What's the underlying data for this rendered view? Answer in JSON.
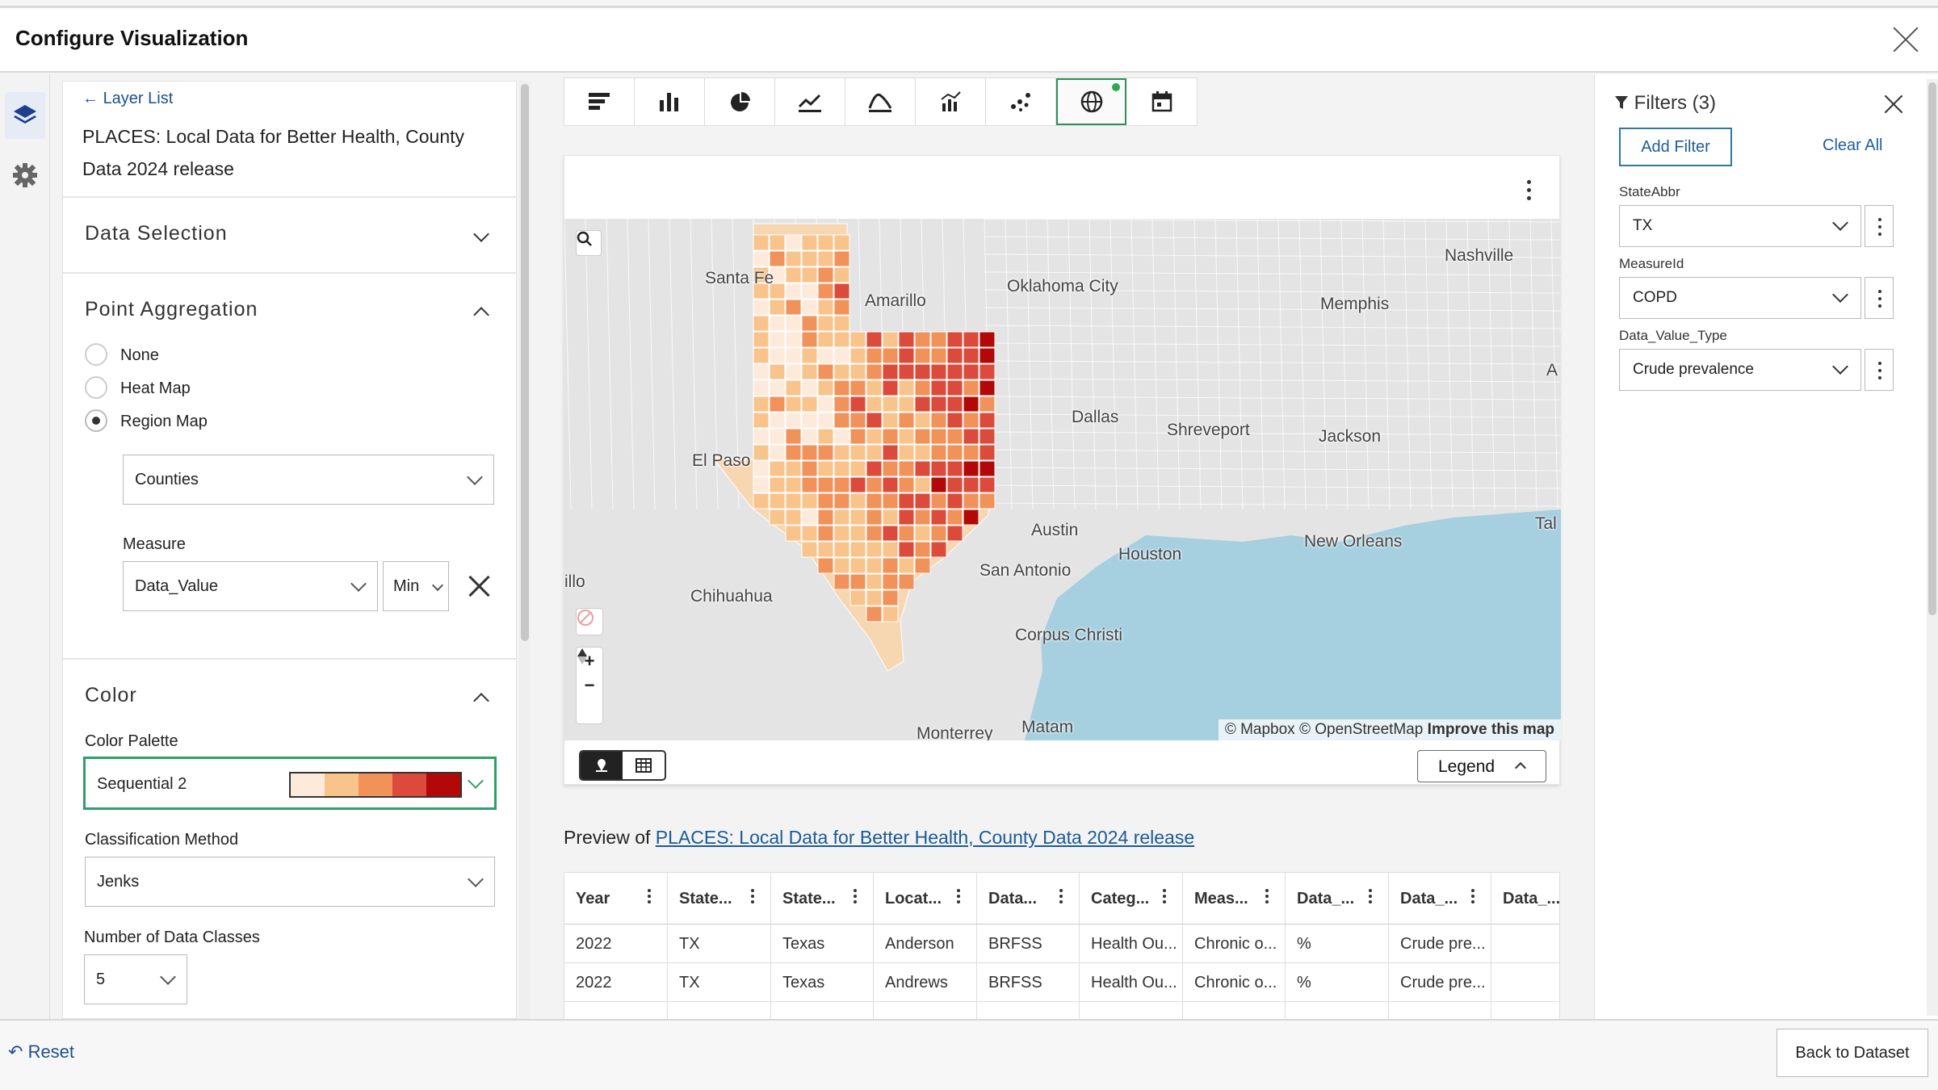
{
  "window": {
    "title": "Configure Visualization"
  },
  "rail": {
    "icons": [
      "layers-icon",
      "gear-icon"
    ]
  },
  "left_panel": {
    "back_link": "Layer List",
    "dataset_name": "PLACES: Local Data for Better Health, County Data 2024 release",
    "sections": {
      "data_selection": "Data Selection",
      "point_aggregation": "Point Aggregation",
      "color": "Color"
    },
    "aggregation_options": [
      "None",
      "Heat Map",
      "Region Map"
    ],
    "aggregation_selected": "Region Map",
    "region_select": "Counties",
    "measure_label": "Measure",
    "measure_value": "Data_Value",
    "measure_agg": "Min",
    "color_palette_label": "Color Palette",
    "color_palette_value": "Sequential 2",
    "palette_colors": [
      "#fdeadb",
      "#f8c48c",
      "#f1925a",
      "#db4a3a",
      "#b30808"
    ],
    "classification_label": "Classification Method",
    "classification_value": "Jenks",
    "num_classes_label": "Number of Data Classes",
    "num_classes_value": "5"
  },
  "toolbar": {
    "buttons": [
      "horizontal-bar-chart-icon",
      "bar-chart-icon",
      "pie-chart-icon",
      "line-chart-icon",
      "area-chart-icon",
      "combo-chart-icon",
      "scatter-chart-icon",
      "map-globe-icon",
      "calendar-icon"
    ],
    "active": "map-globe-icon"
  },
  "map": {
    "labels": {
      "santa_fe": "Santa Fe",
      "amarillo": "Amarillo",
      "oklahoma_city": "Oklahoma City",
      "nashville": "Nashville",
      "memphis": "Memphis",
      "dallas": "Dallas",
      "shreveport": "Shreveport",
      "jackson": "Jackson",
      "el_paso": "El Paso",
      "austin": "Austin",
      "houston": "Houston",
      "new_orleans": "New Orleans",
      "san_antonio": "San Antonio",
      "chihuahua": "Chihuahua",
      "illo": "illo",
      "corpus_christi": "Corpus Christi",
      "monterrey": "Monterrey",
      "matam": "Matam",
      "tal": "Tal",
      "a": "A"
    },
    "attribution": {
      "mapbox": "© Mapbox",
      "osm": "© OpenStreetMap",
      "improve": "Improve this map"
    },
    "controls": {
      "zoom_in": "+",
      "zoom_out": "−"
    },
    "legend_button": "Legend"
  },
  "preview": {
    "prefix": "Preview of",
    "link": "PLACES: Local Data for Better Health, County Data 2024 release",
    "columns": [
      "Year",
      "State...",
      "State...",
      "Locat...",
      "Data...",
      "Categ...",
      "Meas...",
      "Data_...",
      "Data_...",
      "Data_..."
    ],
    "rows": [
      [
        "2022",
        "TX",
        "Texas",
        "Anderson",
        "BRFSS",
        "Health Ou...",
        "Chronic o...",
        "%",
        "Crude pre...",
        ""
      ],
      [
        "2022",
        "TX",
        "Texas",
        "Andrews",
        "BRFSS",
        "Health Ou...",
        "Chronic o...",
        "%",
        "Crude pre...",
        ""
      ]
    ]
  },
  "filters": {
    "title": "Filters (3)",
    "add_filter": "Add Filter",
    "clear_all": "Clear All",
    "items": [
      {
        "label": "StateAbbr",
        "value": "TX"
      },
      {
        "label": "MeasureId",
        "value": "COPD"
      },
      {
        "label": "Data_Value_Type",
        "value": "Crude prevalence"
      }
    ]
  },
  "footer": {
    "reset": "Reset",
    "back_to_dataset": "Back to Dataset"
  }
}
